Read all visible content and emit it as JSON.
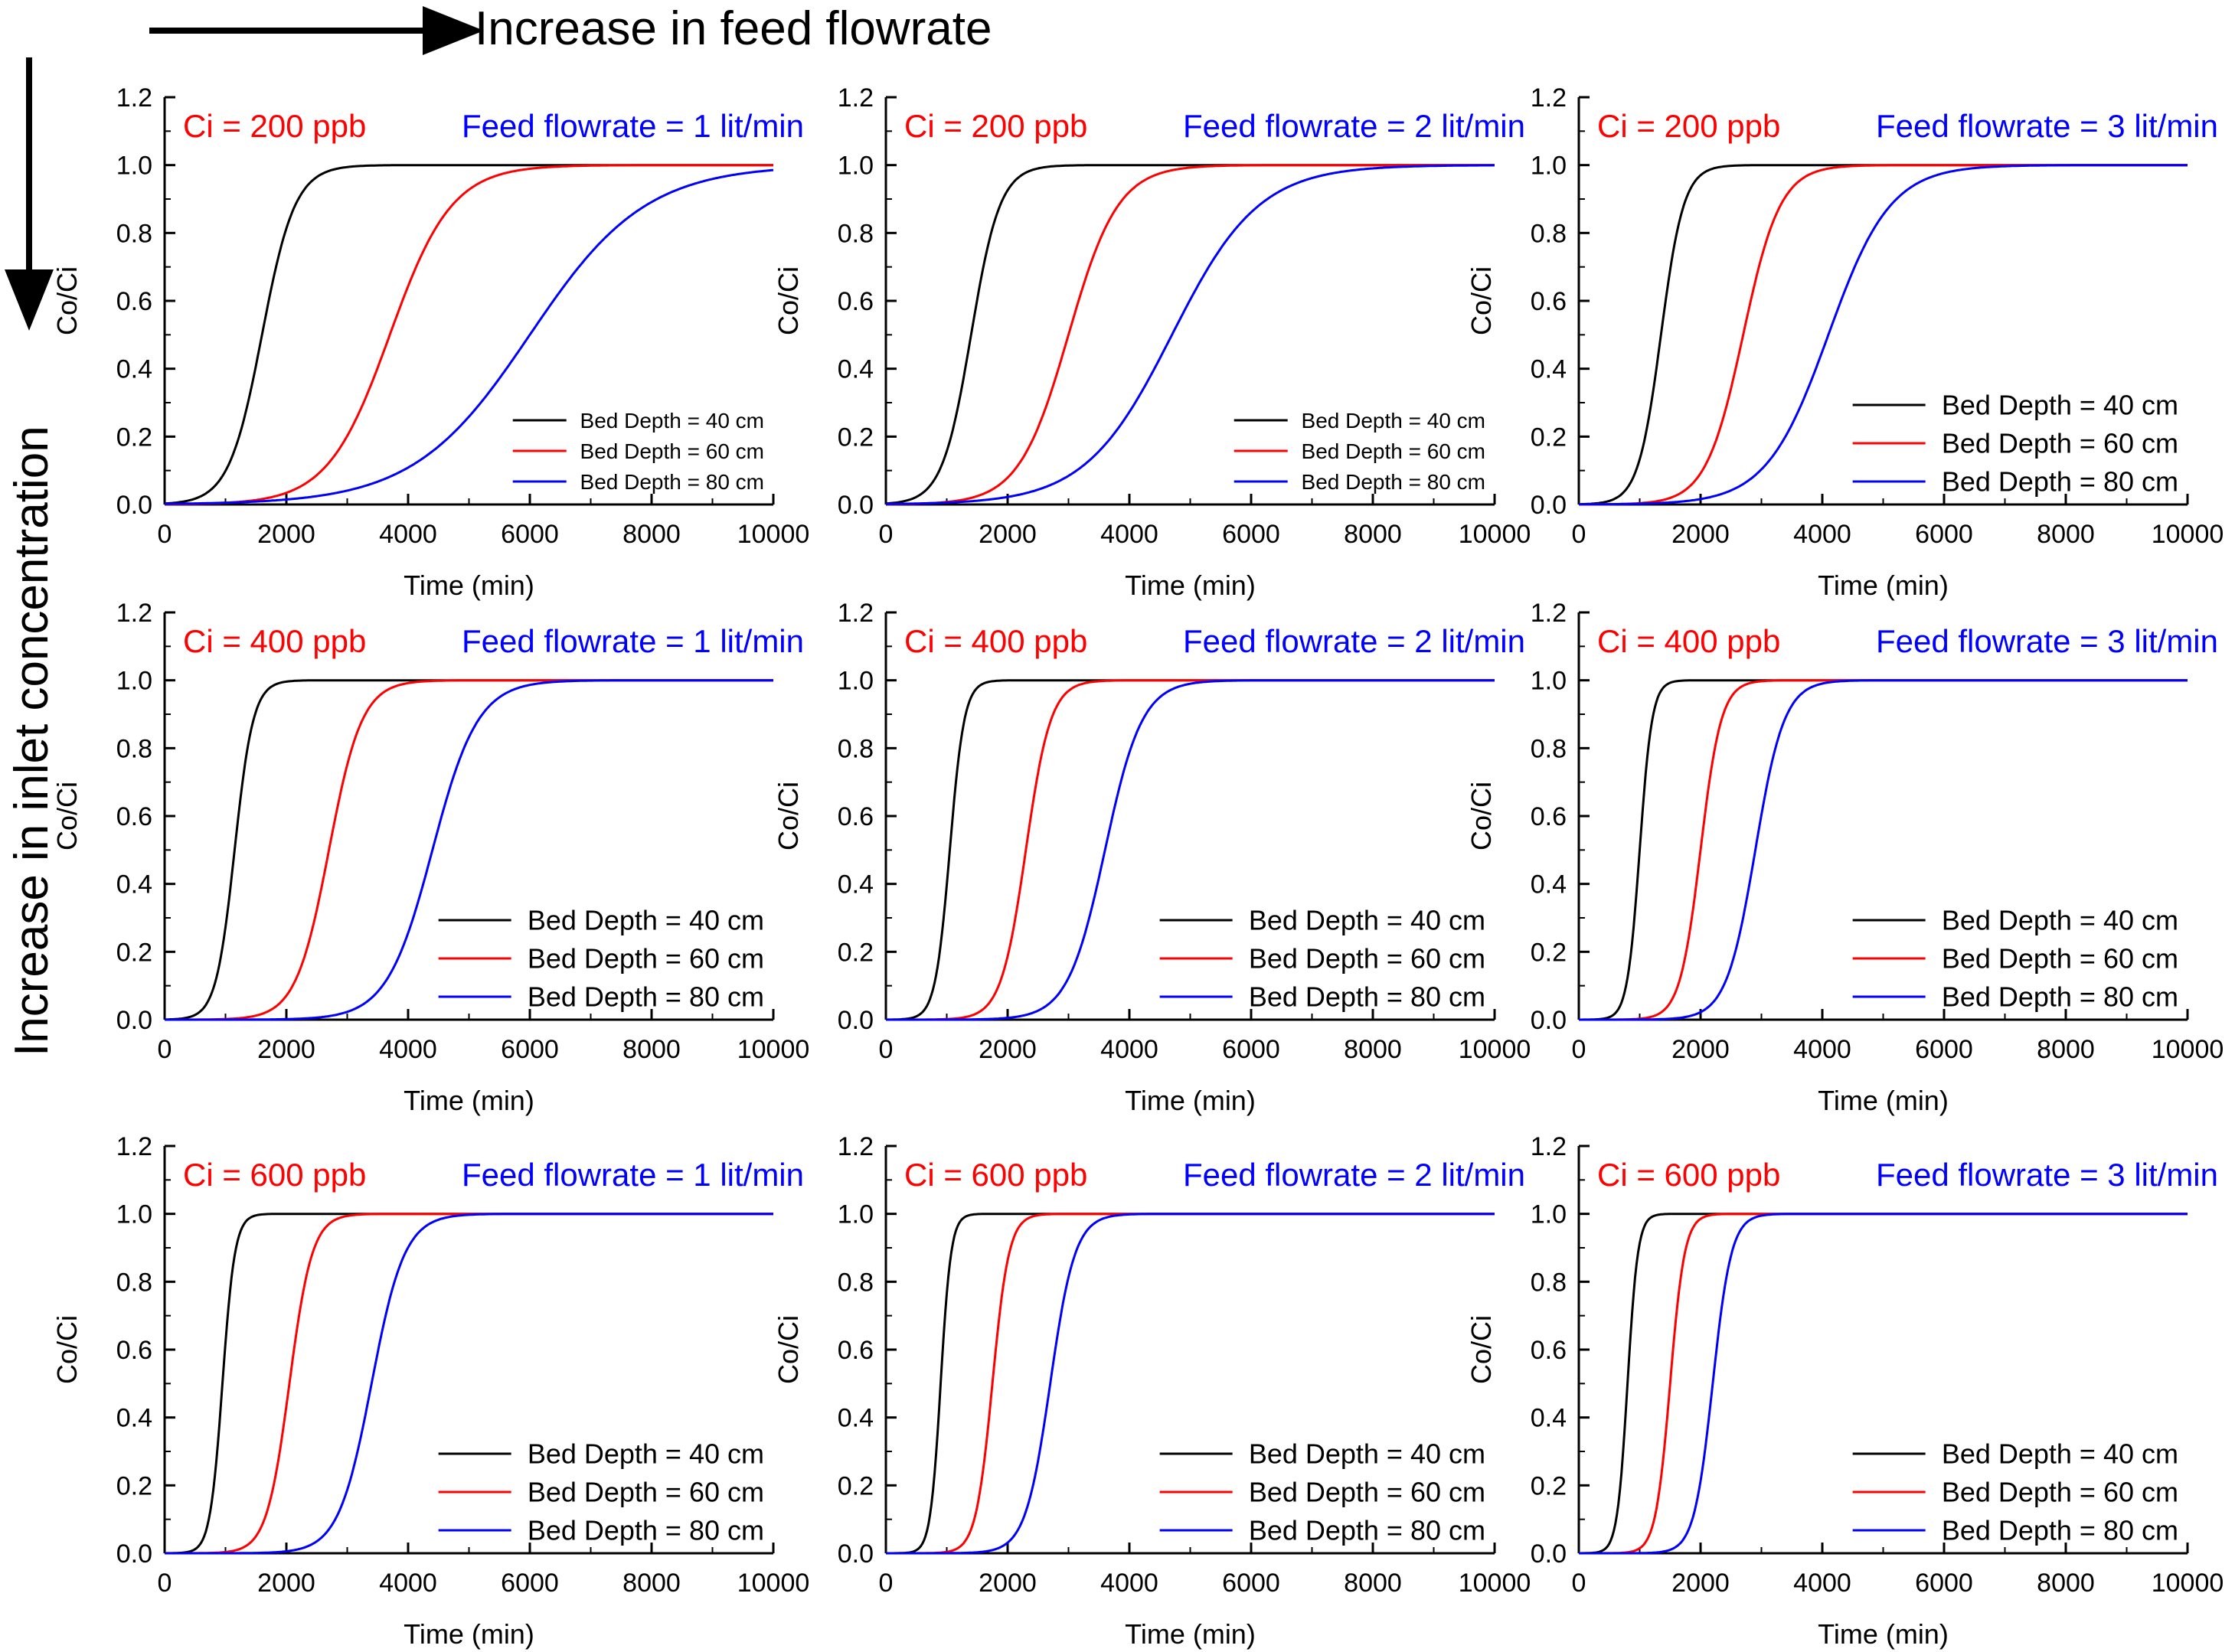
{
  "header": {
    "top_label": "Increase in feed flowrate",
    "side_label": "Increase in inlet concentration"
  },
  "colors": {
    "depth40": "#000000",
    "depth60": "#ff0000",
    "depth80": "#0000ff",
    "ci_text": "#ff0000",
    "flow_text": "#0000ff"
  },
  "chart_data": [
    {
      "type": "line",
      "ci_label": "Ci = 200 ppb",
      "flow_label": "Feed flowrate = 1 lit/min",
      "xlabel": "Time (min)",
      "ylabel": "Co/Ci",
      "xlim": [
        0,
        10000
      ],
      "ylim": [
        0,
        1.2
      ],
      "xticks": [
        0,
        2000,
        4000,
        6000,
        8000,
        10000
      ],
      "yticks": [
        0.0,
        0.2,
        0.4,
        0.6,
        0.8,
        1.0,
        1.2
      ],
      "legend": "bottom-right",
      "legend_size": "small",
      "series": [
        {
          "name": "Bed Depth = 40 cm",
          "color": "#000000",
          "t50": 1600,
          "t95": 2400
        },
        {
          "name": "Bed Depth = 60 cm",
          "color": "#ff0000",
          "t50": 3700,
          "t95": 5200
        },
        {
          "name": "Bed Depth = 80 cm",
          "color": "#0000ff",
          "t50": 6000,
          "t95": 8800
        }
      ]
    },
    {
      "type": "line",
      "ci_label": "Ci = 200 ppb",
      "flow_label": "Feed flowrate = 2 lit/min",
      "xlabel": "Time (min)",
      "ylabel": "Co/Ci",
      "xlim": [
        0,
        10000
      ],
      "ylim": [
        0,
        1.2
      ],
      "xticks": [
        0,
        2000,
        4000,
        6000,
        8000,
        10000
      ],
      "yticks": [
        0.0,
        0.2,
        0.4,
        0.6,
        0.8,
        1.0,
        1.2
      ],
      "legend": "bottom-right",
      "legend_size": "small",
      "series": [
        {
          "name": "Bed Depth = 40 cm",
          "color": "#000000",
          "t50": 1400,
          "t95": 2100
        },
        {
          "name": "Bed Depth = 60 cm",
          "color": "#ff0000",
          "t50": 3000,
          "t95": 4200
        },
        {
          "name": "Bed Depth = 80 cm",
          "color": "#0000ff",
          "t50": 4700,
          "t95": 6800
        }
      ]
    },
    {
      "type": "line",
      "ci_label": "Ci = 200 ppb",
      "flow_label": "Feed flowrate = 3 lit/min",
      "xlabel": "Time (min)",
      "ylabel": "Co/Ci",
      "xlim": [
        0,
        10000
      ],
      "ylim": [
        0,
        1.2
      ],
      "xticks": [
        0,
        2000,
        4000,
        6000,
        8000,
        10000
      ],
      "yticks": [
        0.0,
        0.2,
        0.4,
        0.6,
        0.8,
        1.0,
        1.2
      ],
      "legend": "bottom-right",
      "legend_size": "large",
      "series": [
        {
          "name": "Bed Depth = 40 cm",
          "color": "#000000",
          "t50": 1350,
          "t95": 1900
        },
        {
          "name": "Bed Depth = 60 cm",
          "color": "#ff0000",
          "t50": 2700,
          "t95": 3600
        },
        {
          "name": "Bed Depth = 80 cm",
          "color": "#0000ff",
          "t50": 4100,
          "t95": 5600
        }
      ]
    },
    {
      "type": "line",
      "ci_label": "Ci = 400 ppb",
      "flow_label": "Feed flowrate = 1 lit/min",
      "xlabel": "Time (min)",
      "ylabel": "Co/Ci",
      "xlim": [
        0,
        10000
      ],
      "ylim": [
        0,
        1.2
      ],
      "xticks": [
        0,
        2000,
        4000,
        6000,
        8000,
        10000
      ],
      "yticks": [
        0.0,
        0.2,
        0.4,
        0.6,
        0.8,
        1.0,
        1.2
      ],
      "legend": "bottom-right",
      "legend_size": "large",
      "series": [
        {
          "name": "Bed Depth = 40 cm",
          "color": "#000000",
          "t50": 1150,
          "t95": 1600
        },
        {
          "name": "Bed Depth = 60 cm",
          "color": "#ff0000",
          "t50": 2700,
          "t95": 3500
        },
        {
          "name": "Bed Depth = 80 cm",
          "color": "#0000ff",
          "t50": 4400,
          "t95": 5500
        }
      ]
    },
    {
      "type": "line",
      "ci_label": "Ci = 400 ppb",
      "flow_label": "Feed flowrate = 2 lit/min",
      "xlabel": "Time (min)",
      "ylabel": "Co/Ci",
      "xlim": [
        0,
        10000
      ],
      "ylim": [
        0,
        1.2
      ],
      "xticks": [
        0,
        2000,
        4000,
        6000,
        8000,
        10000
      ],
      "yticks": [
        0.0,
        0.2,
        0.4,
        0.6,
        0.8,
        1.0,
        1.2
      ],
      "legend": "bottom-right",
      "legend_size": "large",
      "series": [
        {
          "name": "Bed Depth = 40 cm",
          "color": "#000000",
          "t50": 1050,
          "t95": 1400
        },
        {
          "name": "Bed Depth = 60 cm",
          "color": "#ff0000",
          "t50": 2300,
          "t95": 2900
        },
        {
          "name": "Bed Depth = 80 cm",
          "color": "#0000ff",
          "t50": 3600,
          "t95": 4500
        }
      ]
    },
    {
      "type": "line",
      "ci_label": "Ci = 400 ppb",
      "flow_label": "Feed flowrate = 3 lit/min",
      "xlabel": "Time (min)",
      "ylabel": "Co/Ci",
      "xlim": [
        0,
        10000
      ],
      "ylim": [
        0,
        1.2
      ],
      "xticks": [
        0,
        2000,
        4000,
        6000,
        8000,
        10000
      ],
      "yticks": [
        0.0,
        0.2,
        0.4,
        0.6,
        0.8,
        1.0,
        1.2
      ],
      "legend": "bottom-right",
      "legend_size": "large",
      "series": [
        {
          "name": "Bed Depth = 40 cm",
          "color": "#000000",
          "t50": 1000,
          "t95": 1300
        },
        {
          "name": "Bed Depth = 60 cm",
          "color": "#ff0000",
          "t50": 2000,
          "t95": 2500
        },
        {
          "name": "Bed Depth = 80 cm",
          "color": "#0000ff",
          "t50": 2900,
          "t95": 3600
        }
      ]
    },
    {
      "type": "line",
      "ci_label": "Ci = 600 ppb",
      "flow_label": "Feed flowrate = 1 lit/min",
      "xlabel": "Time (min)",
      "ylabel": "Co/Ci",
      "xlim": [
        0,
        10000
      ],
      "ylim": [
        0,
        1.2
      ],
      "xticks": [
        0,
        2000,
        4000,
        6000,
        8000,
        10000
      ],
      "yticks": [
        0.0,
        0.2,
        0.4,
        0.6,
        0.8,
        1.0,
        1.2
      ],
      "legend": "bottom-right",
      "legend_size": "large",
      "series": [
        {
          "name": "Bed Depth = 40 cm",
          "color": "#000000",
          "t50": 950,
          "t95": 1250
        },
        {
          "name": "Bed Depth = 60 cm",
          "color": "#ff0000",
          "t50": 2050,
          "t95": 2600
        },
        {
          "name": "Bed Depth = 80 cm",
          "color": "#0000ff",
          "t50": 3400,
          "t95": 4200
        }
      ]
    },
    {
      "type": "line",
      "ci_label": "Ci = 600 ppb",
      "flow_label": "Feed flowrate = 2 lit/min",
      "xlabel": "Time (min)",
      "ylabel": "Co/Ci",
      "xlim": [
        0,
        10000
      ],
      "ylim": [
        0,
        1.2
      ],
      "xticks": [
        0,
        2000,
        4000,
        6000,
        8000,
        10000
      ],
      "yticks": [
        0.0,
        0.2,
        0.4,
        0.6,
        0.8,
        1.0,
        1.2
      ],
      "legend": "bottom-right",
      "legend_size": "large",
      "series": [
        {
          "name": "Bed Depth = 40 cm",
          "color": "#000000",
          "t50": 900,
          "t95": 1150
        },
        {
          "name": "Bed Depth = 60 cm",
          "color": "#ff0000",
          "t50": 1750,
          "t95": 2150
        },
        {
          "name": "Bed Depth = 80 cm",
          "color": "#0000ff",
          "t50": 2700,
          "t95": 3300
        }
      ]
    },
    {
      "type": "line",
      "ci_label": "Ci = 600 ppb",
      "flow_label": "Feed flowrate = 3 lit/min",
      "xlabel": "Time (min)",
      "ylabel": "Co/Ci",
      "xlim": [
        0,
        10000
      ],
      "ylim": [
        0,
        1.2
      ],
      "xticks": [
        0,
        2000,
        4000,
        6000,
        8000,
        10000
      ],
      "yticks": [
        0.0,
        0.2,
        0.4,
        0.6,
        0.8,
        1.0,
        1.2
      ],
      "legend": "bottom-right",
      "legend_size": "large",
      "series": [
        {
          "name": "Bed Depth = 40 cm",
          "color": "#000000",
          "t50": 800,
          "t95": 1050
        },
        {
          "name": "Bed Depth = 60 cm",
          "color": "#ff0000",
          "t50": 1500,
          "t95": 1850
        },
        {
          "name": "Bed Depth = 80 cm",
          "color": "#0000ff",
          "t50": 2200,
          "t95": 2650
        }
      ]
    }
  ]
}
